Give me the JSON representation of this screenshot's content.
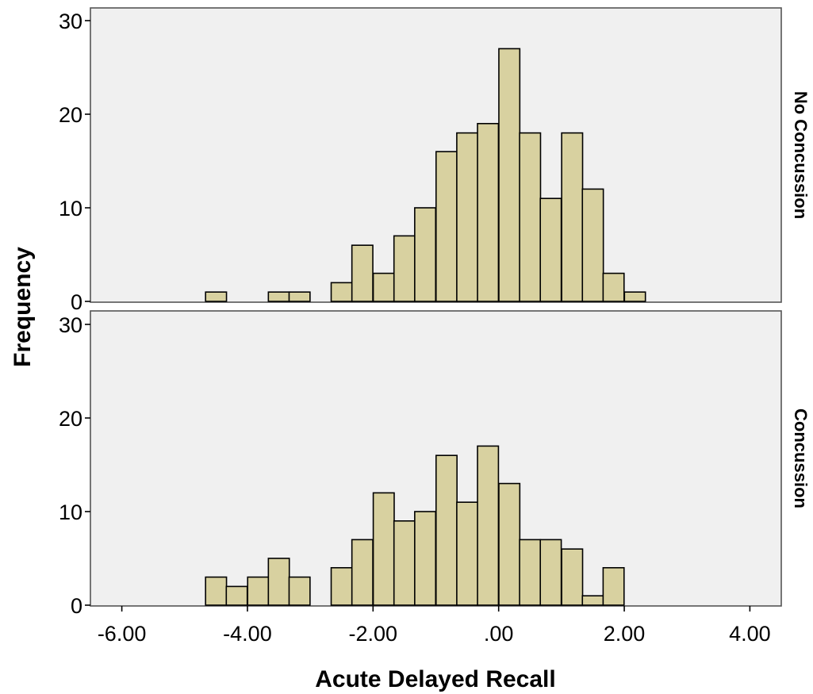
{
  "chart_data": {
    "type": "bar",
    "xlabel": "Acute Delayed Recall",
    "ylabel": "Frequency",
    "xlim": [
      -6.5,
      4.5
    ],
    "x_ticks": [
      "-6.00",
      "-4.00",
      "-2.00",
      ".00",
      "2.00",
      "4.00"
    ],
    "x_tick_values": [
      -6,
      -4,
      -2,
      0,
      2,
      4
    ],
    "ylim": [
      0,
      30
    ],
    "y_ticks": [
      "0",
      "10",
      "20",
      "30"
    ],
    "bin_width": 0.3333,
    "bar_color": "#d8d1a0",
    "panel_background": "#f0f0f0",
    "grid": false,
    "panels": [
      {
        "name": "No Concussion",
        "bins": [
          {
            "x": -4.5,
            "value": 1
          },
          {
            "x": -3.5,
            "value": 1
          },
          {
            "x": -3.17,
            "value": 1
          },
          {
            "x": -2.5,
            "value": 2
          },
          {
            "x": -2.17,
            "value": 6
          },
          {
            "x": -1.83,
            "value": 3
          },
          {
            "x": -1.5,
            "value": 7
          },
          {
            "x": -1.17,
            "value": 10
          },
          {
            "x": -0.83,
            "value": 16
          },
          {
            "x": -0.5,
            "value": 18
          },
          {
            "x": -0.17,
            "value": 19
          },
          {
            "x": 0.17,
            "value": 27
          },
          {
            "x": 0.5,
            "value": 18
          },
          {
            "x": 0.83,
            "value": 11
          },
          {
            "x": 1.17,
            "value": 18
          },
          {
            "x": 1.5,
            "value": 12
          },
          {
            "x": 1.83,
            "value": 3
          },
          {
            "x": 2.17,
            "value": 1
          }
        ]
      },
      {
        "name": "Concussion",
        "bins": [
          {
            "x": -4.5,
            "value": 3
          },
          {
            "x": -4.17,
            "value": 2
          },
          {
            "x": -3.83,
            "value": 3
          },
          {
            "x": -3.5,
            "value": 5
          },
          {
            "x": -3.17,
            "value": 3
          },
          {
            "x": -2.5,
            "value": 4
          },
          {
            "x": -2.17,
            "value": 7
          },
          {
            "x": -1.83,
            "value": 12
          },
          {
            "x": -1.5,
            "value": 9
          },
          {
            "x": -1.17,
            "value": 10
          },
          {
            "x": -0.83,
            "value": 16
          },
          {
            "x": -0.5,
            "value": 11
          },
          {
            "x": -0.17,
            "value": 17
          },
          {
            "x": 0.17,
            "value": 13
          },
          {
            "x": 0.5,
            "value": 7
          },
          {
            "x": 0.83,
            "value": 7
          },
          {
            "x": 1.17,
            "value": 6
          },
          {
            "x": 1.5,
            "value": 1
          },
          {
            "x": 1.83,
            "value": 4
          }
        ]
      }
    ]
  }
}
